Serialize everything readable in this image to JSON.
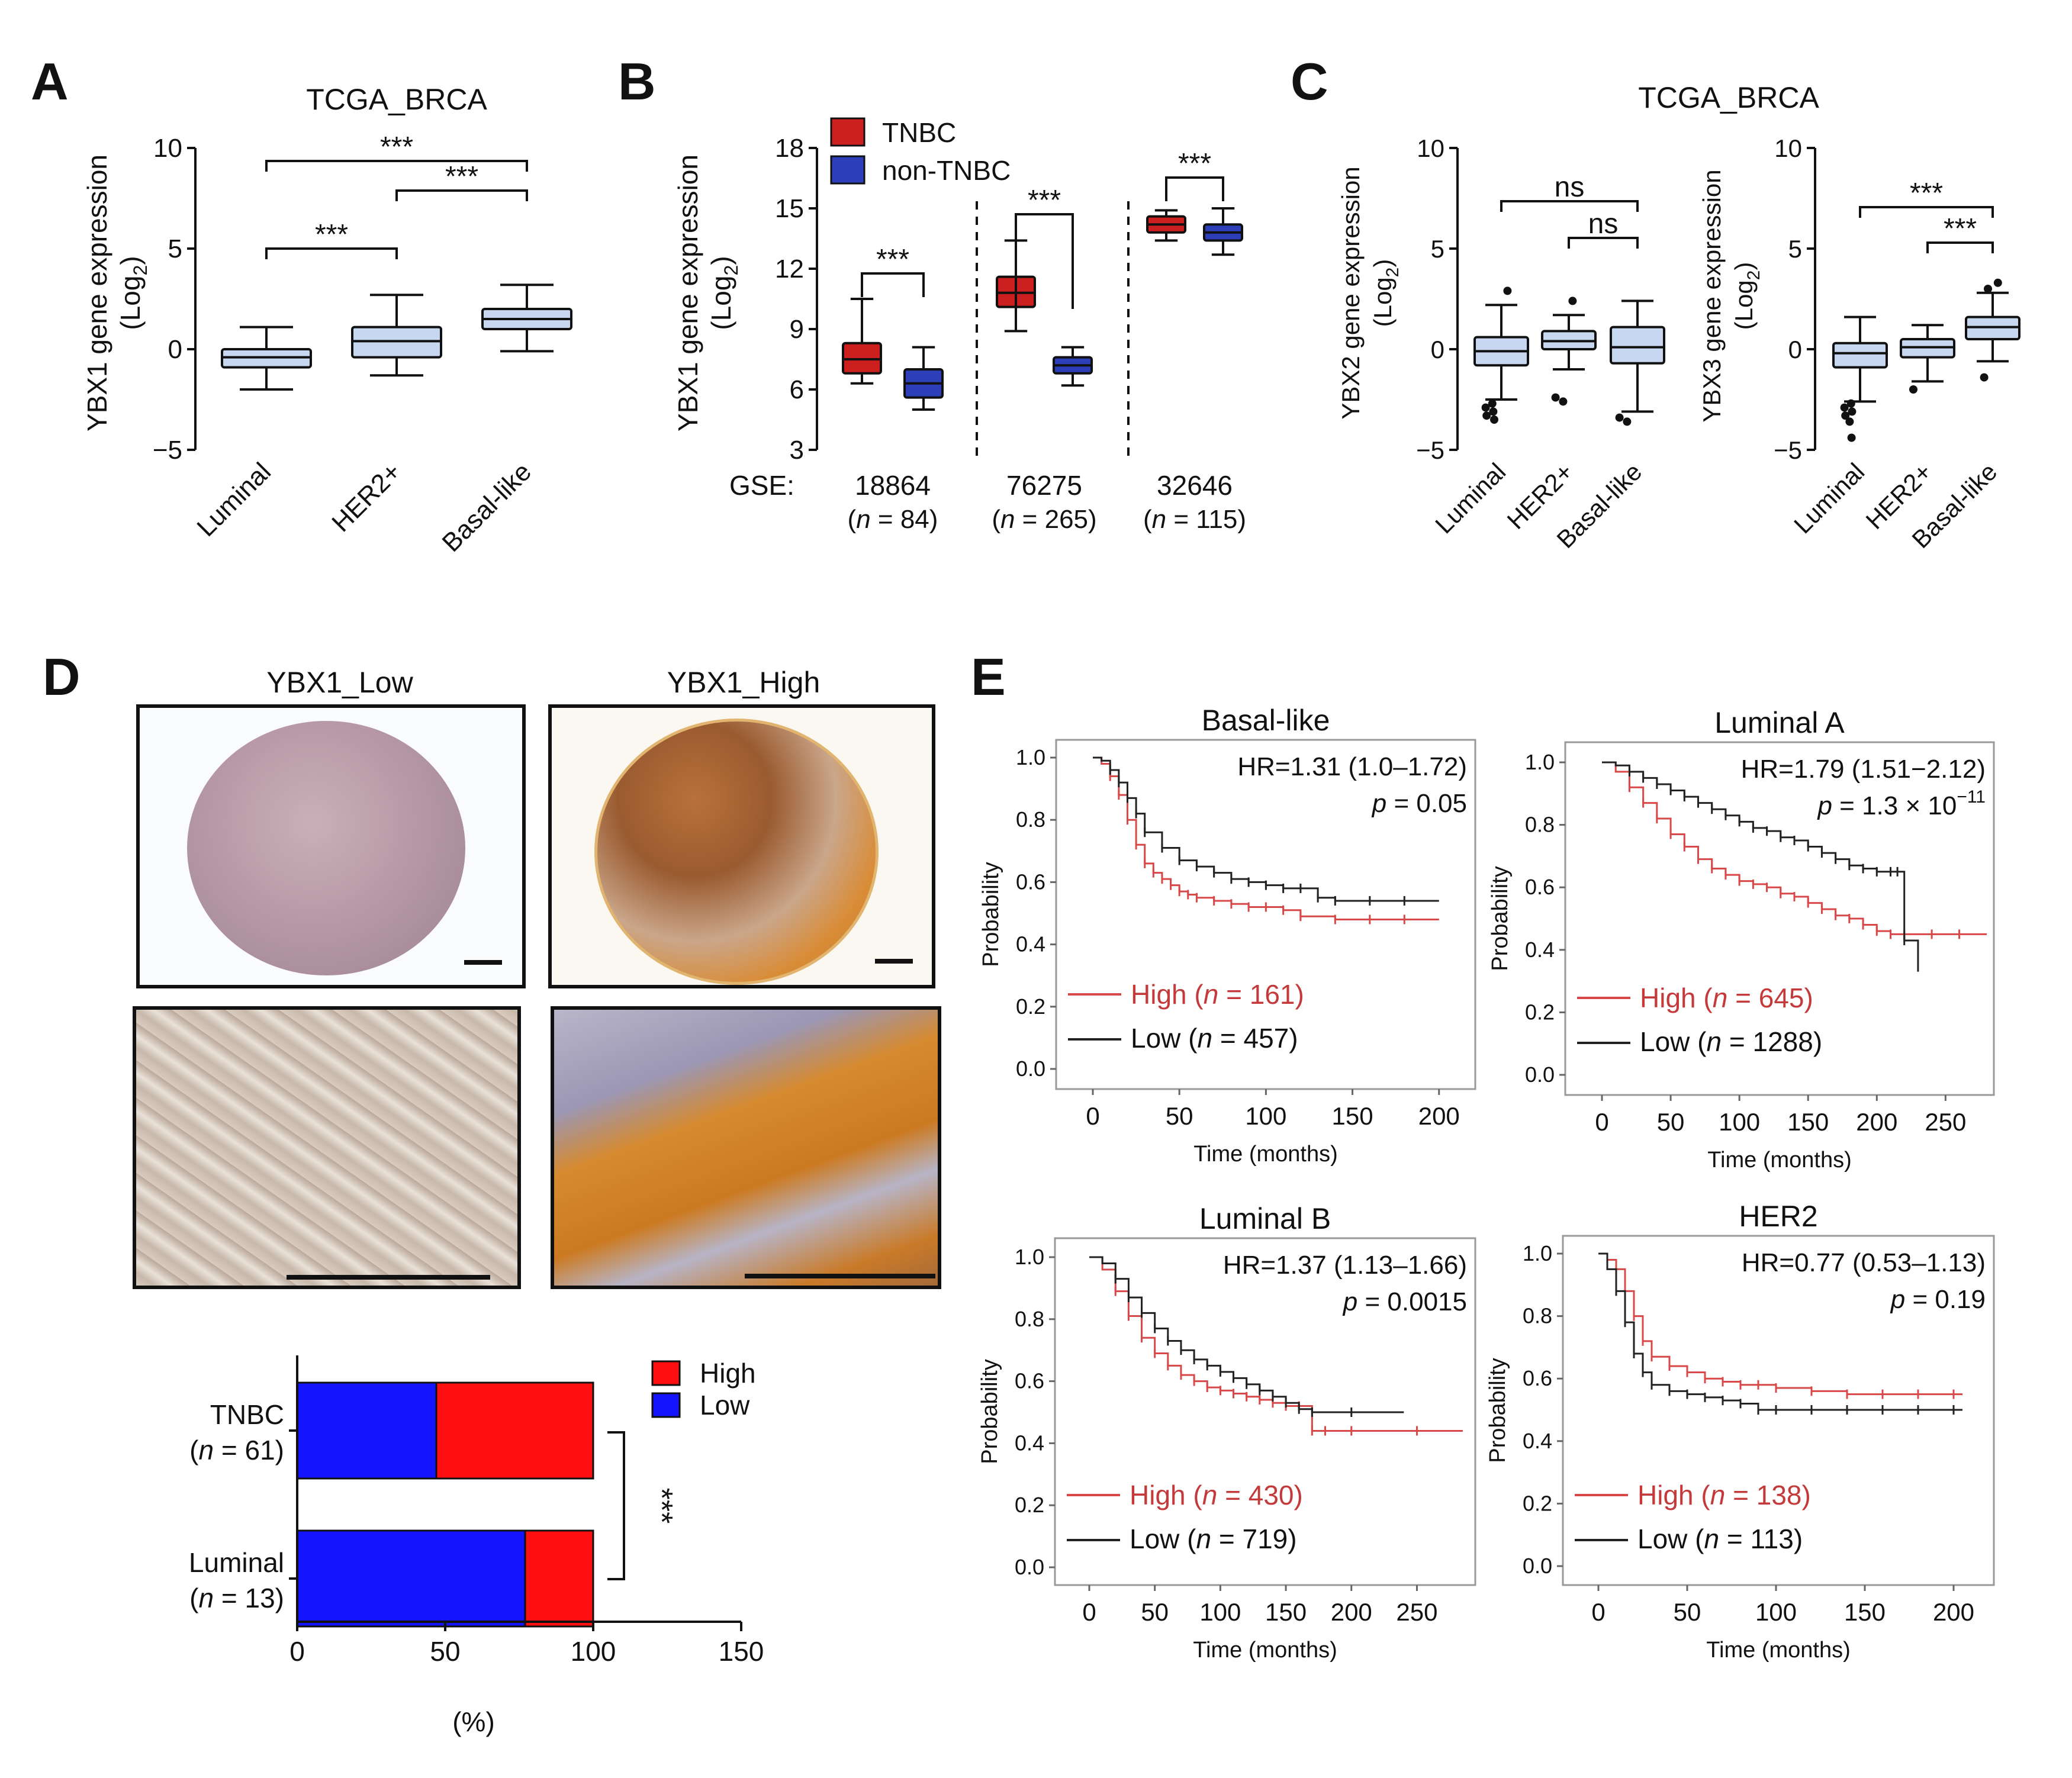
{
  "panels": {
    "a": "A",
    "b": "B",
    "c": "C",
    "d": "D",
    "e": "E"
  },
  "colors": {
    "box_fill": "#c7d7f0",
    "tnbc": "#cc1f1f",
    "non_tnbc": "#2c3fb8",
    "high_km": "#d94848",
    "low_km": "#222222",
    "bar_high": "#ff0f0f",
    "bar_low": "#1414ff"
  },
  "chart_data": [
    {
      "id": "A",
      "type": "box",
      "title": "TCGA_BRCA",
      "ylabel": "YBX1 gene expression",
      "ylabel_sub": "(Log",
      "ylim": [
        -5,
        10
      ],
      "yticks": [
        "10",
        "5",
        "0",
        "−5"
      ],
      "categories": [
        "Luminal",
        "HER2+",
        "Basal-like"
      ],
      "boxes": [
        {
          "min": -2.0,
          "q1": -0.9,
          "median": -0.4,
          "q3": 0.0,
          "max": 1.1
        },
        {
          "min": -1.3,
          "q1": -0.4,
          "median": 0.4,
          "q3": 1.1,
          "max": 2.7
        },
        {
          "min": -0.1,
          "q1": 1.0,
          "median": 1.5,
          "q3": 2.0,
          "max": 3.2
        }
      ],
      "significance": [
        {
          "from": 0,
          "to": 2,
          "label": "***"
        },
        {
          "from": 1,
          "to": 2,
          "label": "***"
        },
        {
          "from": 0,
          "to": 1,
          "label": "***"
        }
      ]
    },
    {
      "id": "B",
      "type": "box",
      "ylabel": "YBX1 gene expression",
      "ylabel_sub": "(Log",
      "ylim": [
        3,
        18
      ],
      "yticks": [
        "18",
        "15",
        "12",
        "9",
        "6",
        "3"
      ],
      "legend": [
        "TNBC",
        "non-TNBC"
      ],
      "gse_label": "GSE:",
      "groups": [
        {
          "id": "18864",
          "n": "= 84)",
          "tnbc": {
            "min": 6.3,
            "q1": 6.8,
            "median": 7.5,
            "q3": 8.3,
            "max": 10.5
          },
          "non_tnbc": {
            "min": 5.0,
            "q1": 5.6,
            "median": 6.3,
            "q3": 7.0,
            "max": 8.1
          },
          "sig": "***"
        },
        {
          "id": "76275",
          "n": "= 265)",
          "tnbc": {
            "min": 8.9,
            "q1": 10.1,
            "median": 10.8,
            "q3": 11.6,
            "max": 13.4
          },
          "non_tnbc": {
            "min": 6.2,
            "q1": 6.8,
            "median": 7.2,
            "q3": 7.6,
            "max": 8.1
          },
          "sig": "***"
        },
        {
          "id": "32646",
          "n": "= 115)",
          "tnbc": {
            "min": 13.4,
            "q1": 13.8,
            "median": 14.2,
            "q3": 14.6,
            "max": 14.9
          },
          "non_tnbc": {
            "min": 12.7,
            "q1": 13.4,
            "median": 13.8,
            "q3": 14.2,
            "max": 15.0
          },
          "sig": "***"
        }
      ]
    },
    {
      "id": "C1",
      "type": "box",
      "title": "TCGA_BRCA",
      "ylabel": "YBX2 gene expression",
      "ylabel_sub": "(Log",
      "ylim": [
        -5,
        10
      ],
      "yticks": [
        "10",
        "5",
        "0",
        "−5"
      ],
      "categories": [
        "Luminal",
        "HER2+",
        "Basal-like"
      ],
      "boxes": [
        {
          "min": -2.5,
          "q1": -0.8,
          "median": -0.1,
          "q3": 0.6,
          "max": 2.2
        },
        {
          "min": -1.0,
          "q1": 0.0,
          "median": 0.4,
          "q3": 0.9,
          "max": 1.7
        },
        {
          "min": -3.1,
          "q1": -0.7,
          "median": 0.1,
          "q3": 1.1,
          "max": 2.4
        }
      ],
      "outliers": [
        [
          0,
          -2.7
        ],
        [
          0,
          -2.9
        ],
        [
          0,
          -3.1
        ],
        [
          0,
          -3.3
        ],
        [
          0,
          -3.5
        ],
        [
          0,
          2.9
        ],
        [
          1,
          -2.4
        ],
        [
          1,
          -2.6
        ],
        [
          1,
          2.4
        ],
        [
          2,
          -3.4
        ],
        [
          2,
          -3.6
        ]
      ],
      "significance": [
        {
          "from": 0,
          "to": 2,
          "label": "ns"
        },
        {
          "from": 1,
          "to": 2,
          "label": "ns"
        }
      ]
    },
    {
      "id": "C2",
      "type": "box",
      "ylabel": "YBX3 gene expression",
      "ylabel_sub": "(Log",
      "ylim": [
        -5,
        10
      ],
      "yticks": [
        "10",
        "5",
        "0",
        "−5"
      ],
      "categories": [
        "Luminal",
        "HER2+",
        "Basal-like"
      ],
      "boxes": [
        {
          "min": -2.6,
          "q1": -0.9,
          "median": -0.2,
          "q3": 0.3,
          "max": 1.6
        },
        {
          "min": -1.6,
          "q1": -0.4,
          "median": 0.1,
          "q3": 0.5,
          "max": 1.2
        },
        {
          "min": -0.6,
          "q1": 0.5,
          "median": 1.1,
          "q3": 1.6,
          "max": 2.8
        }
      ],
      "outliers": [
        [
          0,
          -2.7
        ],
        [
          0,
          -2.9
        ],
        [
          0,
          -3.1
        ],
        [
          0,
          -3.3
        ],
        [
          0,
          -3.6
        ],
        [
          0,
          -4.4
        ],
        [
          1,
          -2.0
        ],
        [
          2,
          -1.4
        ],
        [
          2,
          3.0
        ],
        [
          2,
          3.3
        ]
      ],
      "significance": [
        {
          "from": 0,
          "to": 2,
          "label": "***"
        },
        {
          "from": 1,
          "to": 2,
          "label": "***"
        }
      ]
    },
    {
      "id": "D",
      "type": "bar",
      "stacked": true,
      "orientation": "horizontal",
      "categories": [
        "TNBC",
        "Luminal"
      ],
      "category_n": [
        "= 61)",
        "= 13)"
      ],
      "series": [
        {
          "name": "Low",
          "values": [
            47,
            77
          ]
        },
        {
          "name": "High",
          "values": [
            53,
            23
          ]
        }
      ],
      "xlim": [
        0,
        150
      ],
      "xticks": [
        "0",
        "50",
        "100",
        "150"
      ],
      "xlabel": "(%)",
      "legend": [
        "High",
        "Low"
      ],
      "significance": "***"
    },
    {
      "id": "E1",
      "type": "line",
      "title": "Basal-like",
      "hr": "HR=1.31 (1.0–1.72)",
      "p": "= 0.05",
      "high_label": "High (",
      "high_n": "= 161)",
      "low_label": "Low (",
      "low_n": "= 457)",
      "xlim": [
        0,
        210
      ],
      "xticks": [
        "0",
        "50",
        "100",
        "150",
        "200"
      ],
      "ylim": [
        0,
        1
      ],
      "yticks": [
        "1.0",
        "0.8",
        "0.6",
        "0.4",
        "0.2",
        "0.0"
      ],
      "xlabel": "Time (months)",
      "ylabel": "Probability",
      "series": [
        {
          "name": "High",
          "x": [
            0,
            5,
            10,
            15,
            20,
            25,
            30,
            35,
            40,
            45,
            50,
            55,
            60,
            70,
            80,
            90,
            100,
            110,
            120,
            140,
            160,
            180,
            200
          ],
          "y": [
            1.0,
            0.98,
            0.94,
            0.88,
            0.8,
            0.72,
            0.66,
            0.63,
            0.61,
            0.59,
            0.57,
            0.56,
            0.55,
            0.54,
            0.53,
            0.52,
            0.52,
            0.51,
            0.49,
            0.48,
            0.48,
            0.48,
            0.48
          ]
        },
        {
          "name": "Low",
          "x": [
            0,
            5,
            10,
            15,
            20,
            25,
            30,
            40,
            50,
            60,
            70,
            80,
            90,
            100,
            110,
            120,
            130,
            140,
            160,
            180,
            200
          ],
          "y": [
            1.0,
            0.99,
            0.96,
            0.92,
            0.87,
            0.82,
            0.76,
            0.71,
            0.67,
            0.65,
            0.63,
            0.61,
            0.6,
            0.59,
            0.58,
            0.58,
            0.55,
            0.54,
            0.54,
            0.54,
            0.54
          ]
        }
      ]
    },
    {
      "id": "E2",
      "type": "line",
      "title": "Luminal A",
      "hr": "HR=1.79 (1.51−2.12)",
      "p": "= 1.3 × 10",
      "p_exp": "−11",
      "high_label": "High (",
      "high_n": "= 645)",
      "low_label": "Low (",
      "low_n": "= 1288)",
      "xlim": [
        0,
        280
      ],
      "xticks": [
        "0",
        "50",
        "100",
        "150",
        "200",
        "250"
      ],
      "ylim": [
        0,
        1
      ],
      "yticks": [
        "1.0",
        "0.8",
        "0.6",
        "0.4",
        "0.2",
        "0.0"
      ],
      "xlabel": "Time (months)",
      "ylabel": "Probability",
      "series": [
        {
          "name": "High",
          "x": [
            0,
            10,
            20,
            30,
            40,
            50,
            60,
            70,
            80,
            90,
            100,
            110,
            120,
            130,
            140,
            150,
            160,
            170,
            180,
            190,
            200,
            210,
            220,
            240,
            260,
            280
          ],
          "y": [
            1.0,
            0.97,
            0.92,
            0.87,
            0.82,
            0.77,
            0.73,
            0.69,
            0.66,
            0.64,
            0.62,
            0.61,
            0.6,
            0.58,
            0.57,
            0.55,
            0.53,
            0.51,
            0.5,
            0.48,
            0.46,
            0.45,
            0.45,
            0.45,
            0.45,
            0.45
          ]
        },
        {
          "name": "Low",
          "x": [
            0,
            10,
            20,
            30,
            40,
            50,
            60,
            70,
            80,
            90,
            100,
            110,
            120,
            130,
            140,
            150,
            160,
            170,
            180,
            190,
            200,
            210,
            215,
            220,
            230
          ],
          "y": [
            1.0,
            0.99,
            0.97,
            0.95,
            0.93,
            0.91,
            0.89,
            0.87,
            0.85,
            0.83,
            0.81,
            0.79,
            0.78,
            0.76,
            0.75,
            0.73,
            0.71,
            0.69,
            0.67,
            0.66,
            0.65,
            0.65,
            0.65,
            0.43,
            0.33
          ]
        }
      ]
    },
    {
      "id": "E3",
      "type": "line",
      "title": "Luminal B",
      "hr": "HR=1.37 (1.13–1.66)",
      "p": "= 0.0015",
      "high_label": "High (",
      "high_n": "= 430)",
      "low_label": "Low (",
      "low_n": "= 719)",
      "xlim": [
        0,
        290
      ],
      "xticks": [
        "0",
        "50",
        "100",
        "150",
        "200",
        "250"
      ],
      "ylim": [
        0,
        1
      ],
      "yticks": [
        "1.0",
        "0.8",
        "0.6",
        "0.4",
        "0.2",
        "0.0"
      ],
      "xlabel": "Time (months)",
      "ylabel": "Probability",
      "series": [
        {
          "name": "High",
          "x": [
            0,
            10,
            20,
            30,
            40,
            50,
            60,
            70,
            80,
            90,
            100,
            110,
            120,
            130,
            140,
            150,
            160,
            170,
            180,
            200,
            250,
            285
          ],
          "y": [
            1.0,
            0.96,
            0.89,
            0.81,
            0.74,
            0.69,
            0.65,
            0.62,
            0.6,
            0.58,
            0.57,
            0.56,
            0.55,
            0.54,
            0.53,
            0.52,
            0.52,
            0.44,
            0.44,
            0.44,
            0.44,
            0.44
          ]
        },
        {
          "name": "Low",
          "x": [
            0,
            10,
            20,
            30,
            40,
            50,
            60,
            70,
            80,
            90,
            100,
            110,
            120,
            130,
            140,
            150,
            160,
            170,
            200,
            240
          ],
          "y": [
            1.0,
            0.98,
            0.93,
            0.87,
            0.82,
            0.77,
            0.73,
            0.7,
            0.67,
            0.65,
            0.63,
            0.61,
            0.59,
            0.57,
            0.55,
            0.53,
            0.51,
            0.5,
            0.5,
            0.5
          ]
        }
      ]
    },
    {
      "id": "E4",
      "type": "line",
      "title": "HER2",
      "hr": "HR=0.77 (0.53–1.13)",
      "p": "= 0.19",
      "high_label": "High (",
      "high_n": "= 138)",
      "low_label": "Low (",
      "low_n": "= 113)",
      "xlim": [
        0,
        210
      ],
      "xticks": [
        "0",
        "50",
        "100",
        "150",
        "200"
      ],
      "ylim": [
        0,
        1
      ],
      "yticks": [
        "1.0",
        "0.8",
        "0.6",
        "0.4",
        "0.2",
        "0.0"
      ],
      "xlabel": "Time (months)",
      "ylabel": "Probability",
      "series": [
        {
          "name": "High",
          "x": [
            0,
            5,
            10,
            15,
            20,
            25,
            30,
            40,
            50,
            60,
            70,
            80,
            90,
            100,
            120,
            140,
            160,
            180,
            200,
            205
          ],
          "y": [
            1.0,
            0.98,
            0.95,
            0.88,
            0.8,
            0.72,
            0.67,
            0.64,
            0.62,
            0.6,
            0.59,
            0.58,
            0.58,
            0.57,
            0.56,
            0.55,
            0.55,
            0.55,
            0.55,
            0.55
          ]
        },
        {
          "name": "Low",
          "x": [
            0,
            5,
            10,
            15,
            20,
            25,
            30,
            40,
            50,
            60,
            70,
            80,
            90,
            100,
            120,
            140,
            160,
            180,
            200,
            205
          ],
          "y": [
            1.0,
            0.95,
            0.88,
            0.78,
            0.68,
            0.62,
            0.58,
            0.56,
            0.55,
            0.54,
            0.53,
            0.52,
            0.5,
            0.5,
            0.5,
            0.5,
            0.5,
            0.5,
            0.5,
            0.5
          ]
        }
      ]
    }
  ],
  "ihc": {
    "low_title": "YBX1_Low",
    "high_title": "YBX1_High"
  }
}
